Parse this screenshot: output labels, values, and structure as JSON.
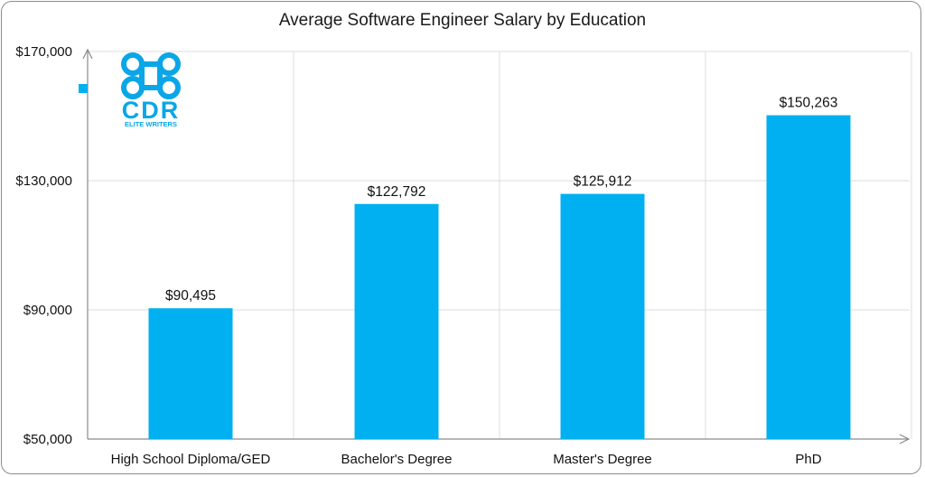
{
  "chart_data": {
    "type": "bar",
    "title": "Average Software Engineer Salary by Education",
    "categories": [
      "High School Diploma/GED",
      "Bachelor's Degree",
      "Master's Degree",
      "PhD"
    ],
    "values": [
      90495,
      122792,
      125912,
      150263
    ],
    "data_labels": [
      "$90,495",
      "$122,792",
      "$125,912",
      "$150,263"
    ],
    "ylim": [
      50000,
      170000
    ],
    "yticks": [
      50000,
      90000,
      130000,
      170000
    ],
    "ytick_labels": [
      "$50,000",
      "$90,000",
      "$130,000",
      "$170,000"
    ],
    "xlabel": "",
    "ylabel": "",
    "bar_color": "#00b0f0",
    "grid": true,
    "legend": "left"
  },
  "logo": {
    "letters": "CDR",
    "tagline": "ELITE WRITERS",
    "color": "#0aa6e8"
  }
}
